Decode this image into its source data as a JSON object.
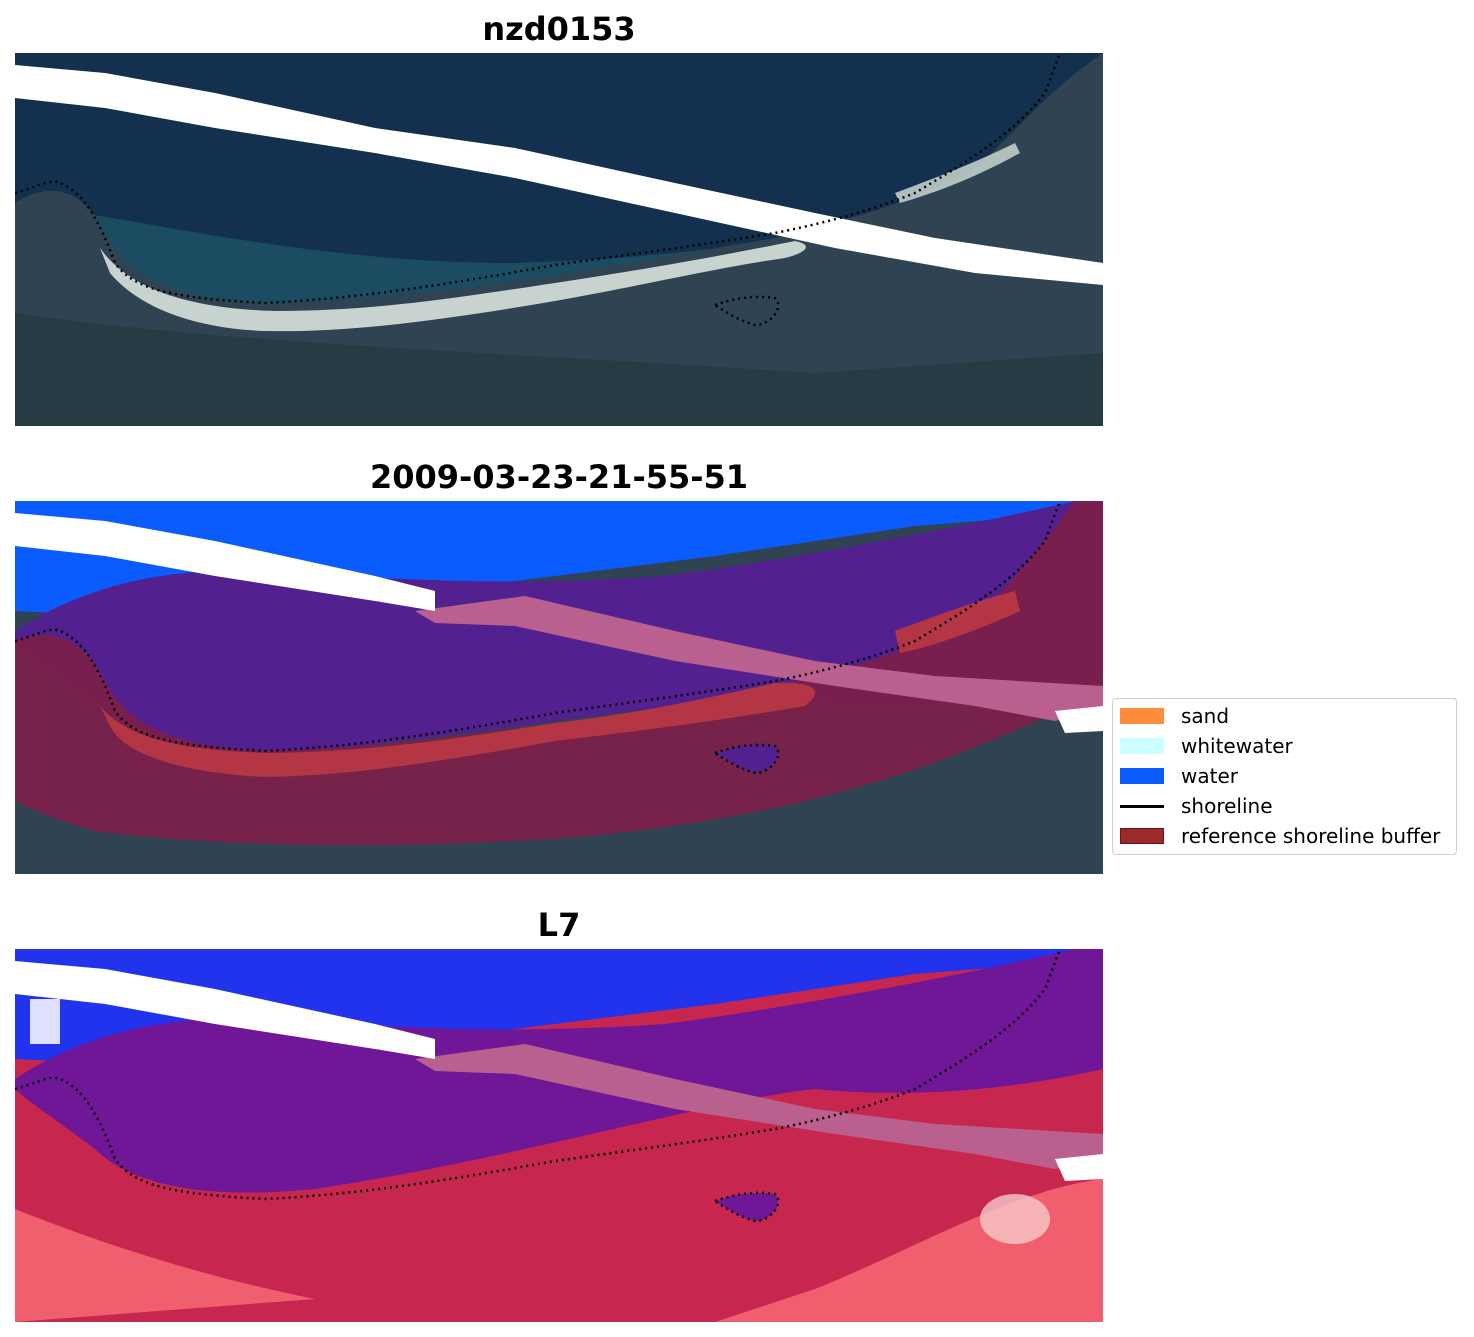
{
  "figure": {
    "panels": [
      {
        "title": "nzd0153"
      },
      {
        "title": "2009-03-23-21-55-51"
      },
      {
        "title": "L7"
      }
    ]
  },
  "legend": {
    "items": [
      {
        "label": "sand",
        "color": "#ff8c3c"
      },
      {
        "label": "whitewater",
        "color": "#ccffff"
      },
      {
        "label": "water",
        "color": "#0a5cff"
      },
      {
        "label": "shoreline",
        "color": "#000000"
      },
      {
        "label": "reference shoreline buffer",
        "color": "#9c2a2a"
      }
    ]
  },
  "colors": {
    "ocean_rgb": "#14304f",
    "land_rgb": "#2f4352",
    "beach_white": "#d9e2dc",
    "nodata_stripe": "#ffffff",
    "buffer_purple": "#52218f",
    "buffer_pink": "#b9608f",
    "buffer_maroon": "#7d1f4a",
    "sand_red": "#b43645",
    "index_blue": "#2233ee",
    "index_purple": "#6f1796",
    "index_red": "#c7274f",
    "index_light_red": "#ef5f6d"
  }
}
